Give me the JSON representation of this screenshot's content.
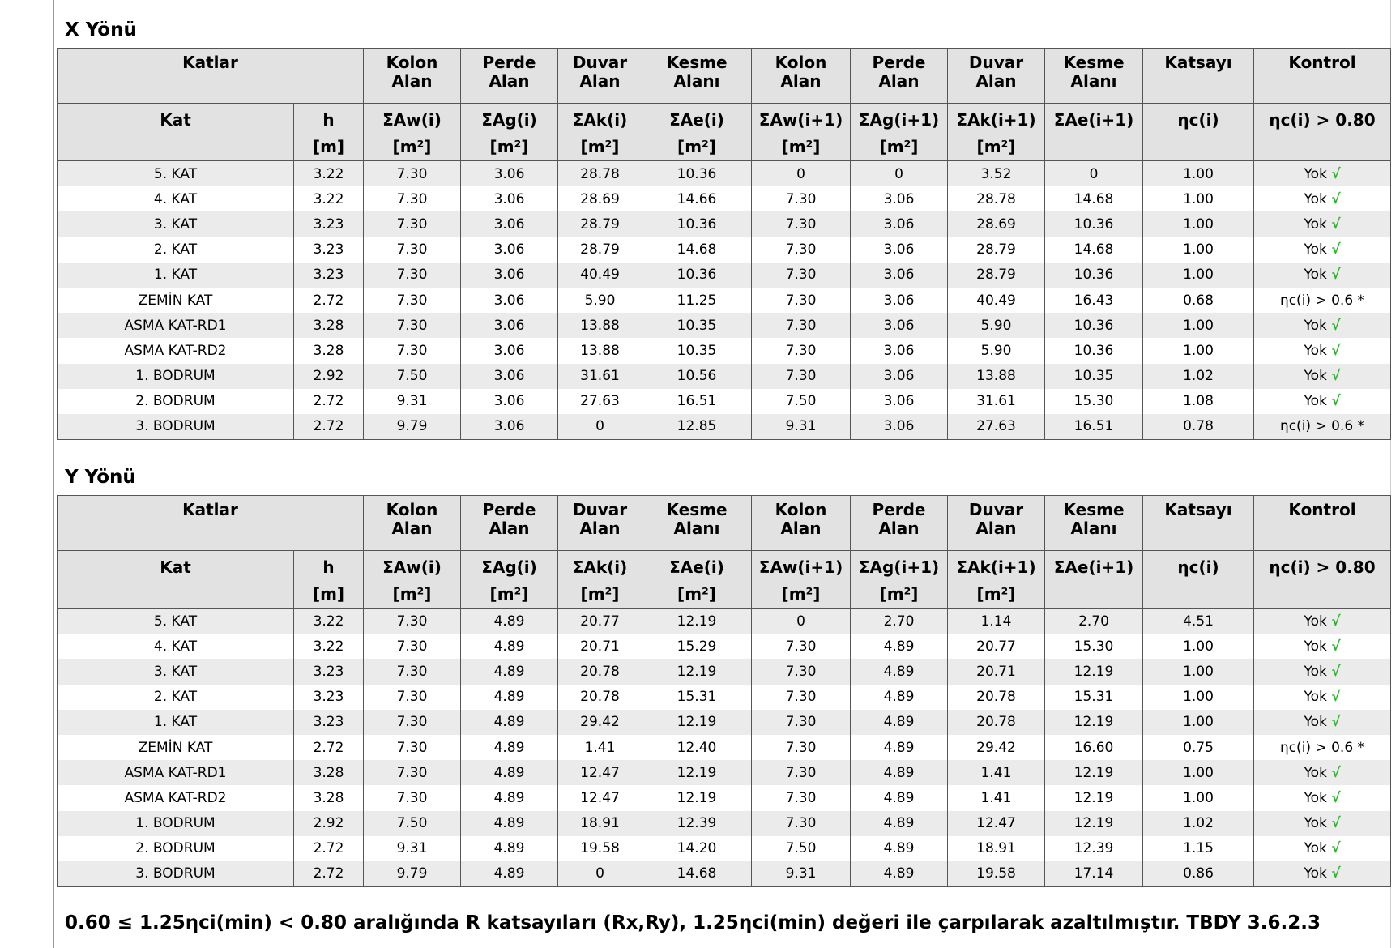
{
  "columns": {
    "group": [
      "Katlar",
      "Kolon\nAlan",
      "Perde\nAlan",
      "Duvar\nAlan",
      "Kesme\nAlanı",
      "Kolon\nAlan",
      "Perde\nAlan",
      "Duvar\nAlan",
      "Kesme\nAlanı",
      "Katsayı",
      "Kontrol"
    ],
    "symbols": [
      "Kat",
      "h\n[m]",
      "ΣAw(i)\n[m²]",
      "ΣAg(i)\n[m²]",
      "ΣAk(i)\n[m²]",
      "ΣAe(i)\n[m²]",
      "ΣAw(i+1)\n[m²]",
      "ΣAg(i+1)\n[m²]",
      "ΣAk(i+1)\n[m²]",
      "ΣAe(i+1)",
      "ηc(i)",
      "ηc(i) > 0.80"
    ]
  },
  "x_section": {
    "title": "X Yönü",
    "rows": [
      [
        "5. KAT",
        "3.22",
        "7.30",
        "3.06",
        "28.78",
        "10.36",
        "0",
        "0",
        "3.52",
        "0",
        "1.00",
        "Yok",
        "√"
      ],
      [
        "4. KAT",
        "3.22",
        "7.30",
        "3.06",
        "28.69",
        "14.66",
        "7.30",
        "3.06",
        "28.78",
        "14.68",
        "1.00",
        "Yok",
        "√"
      ],
      [
        "3. KAT",
        "3.23",
        "7.30",
        "3.06",
        "28.79",
        "10.36",
        "7.30",
        "3.06",
        "28.69",
        "10.36",
        "1.00",
        "Yok",
        "√"
      ],
      [
        "2. KAT",
        "3.23",
        "7.30",
        "3.06",
        "28.79",
        "14.68",
        "7.30",
        "3.06",
        "28.79",
        "14.68",
        "1.00",
        "Yok",
        "√"
      ],
      [
        "1. KAT",
        "3.23",
        "7.30",
        "3.06",
        "40.49",
        "10.36",
        "7.30",
        "3.06",
        "28.79",
        "10.36",
        "1.00",
        "Yok",
        "√"
      ],
      [
        "ZEMİN KAT",
        "2.72",
        "7.30",
        "3.06",
        "5.90",
        "11.25",
        "7.30",
        "3.06",
        "40.49",
        "16.43",
        "0.68",
        "ηc(i) > 0.6 *",
        ""
      ],
      [
        "ASMA KAT-RD1",
        "3.28",
        "7.30",
        "3.06",
        "13.88",
        "10.35",
        "7.30",
        "3.06",
        "5.90",
        "10.36",
        "1.00",
        "Yok",
        "√"
      ],
      [
        "ASMA KAT-RD2",
        "3.28",
        "7.30",
        "3.06",
        "13.88",
        "10.35",
        "7.30",
        "3.06",
        "5.90",
        "10.36",
        "1.00",
        "Yok",
        "√"
      ],
      [
        "1. BODRUM",
        "2.92",
        "7.50",
        "3.06",
        "31.61",
        "10.56",
        "7.30",
        "3.06",
        "13.88",
        "10.35",
        "1.02",
        "Yok",
        "√"
      ],
      [
        "2. BODRUM",
        "2.72",
        "9.31",
        "3.06",
        "27.63",
        "16.51",
        "7.50",
        "3.06",
        "31.61",
        "15.30",
        "1.08",
        "Yok",
        "√"
      ],
      [
        "3. BODRUM",
        "2.72",
        "9.79",
        "3.06",
        "0",
        "12.85",
        "9.31",
        "3.06",
        "27.63",
        "16.51",
        "0.78",
        "ηc(i) > 0.6 *",
        ""
      ]
    ]
  },
  "y_section": {
    "title": "Y Yönü",
    "rows": [
      [
        "5. KAT",
        "3.22",
        "7.30",
        "4.89",
        "20.77",
        "12.19",
        "0",
        "2.70",
        "1.14",
        "2.70",
        "4.51",
        "Yok",
        "√"
      ],
      [
        "4. KAT",
        "3.22",
        "7.30",
        "4.89",
        "20.71",
        "15.29",
        "7.30",
        "4.89",
        "20.77",
        "15.30",
        "1.00",
        "Yok",
        "√"
      ],
      [
        "3. KAT",
        "3.23",
        "7.30",
        "4.89",
        "20.78",
        "12.19",
        "7.30",
        "4.89",
        "20.71",
        "12.19",
        "1.00",
        "Yok",
        "√"
      ],
      [
        "2. KAT",
        "3.23",
        "7.30",
        "4.89",
        "20.78",
        "15.31",
        "7.30",
        "4.89",
        "20.78",
        "15.31",
        "1.00",
        "Yok",
        "√"
      ],
      [
        "1. KAT",
        "3.23",
        "7.30",
        "4.89",
        "29.42",
        "12.19",
        "7.30",
        "4.89",
        "20.78",
        "12.19",
        "1.00",
        "Yok",
        "√"
      ],
      [
        "ZEMİN KAT",
        "2.72",
        "7.30",
        "4.89",
        "1.41",
        "12.40",
        "7.30",
        "4.89",
        "29.42",
        "16.60",
        "0.75",
        "ηc(i) > 0.6 *",
        ""
      ],
      [
        "ASMA KAT-RD1",
        "3.28",
        "7.30",
        "4.89",
        "12.47",
        "12.19",
        "7.30",
        "4.89",
        "1.41",
        "12.19",
        "1.00",
        "Yok",
        "√"
      ],
      [
        "ASMA KAT-RD2",
        "3.28",
        "7.30",
        "4.89",
        "12.47",
        "12.19",
        "7.30",
        "4.89",
        "1.41",
        "12.19",
        "1.00",
        "Yok",
        "√"
      ],
      [
        "1. BODRUM",
        "2.92",
        "7.50",
        "4.89",
        "18.91",
        "12.39",
        "7.30",
        "4.89",
        "12.47",
        "12.19",
        "1.02",
        "Yok",
        "√"
      ],
      [
        "2. BODRUM",
        "2.72",
        "9.31",
        "4.89",
        "19.58",
        "14.20",
        "7.50",
        "4.89",
        "18.91",
        "12.39",
        "1.15",
        "Yok",
        "√"
      ],
      [
        "3. BODRUM",
        "2.72",
        "9.79",
        "4.89",
        "0",
        "14.68",
        "9.31",
        "4.89",
        "19.58",
        "17.14",
        "0.86",
        "Yok",
        "√"
      ]
    ]
  },
  "footnote": "0.60 ≤ 1.25ηci(min) < 0.80 aralığında R katsayıları (Rx,Ry), 1.25ηci(min) değeri ile çarpılarak azaltılmıştır. TBDY 3.6.2.3",
  "colors": {
    "header_bg": "#e2e2e2",
    "stripe": "#ebebeb",
    "check": "#2bb52b",
    "border": "#555555"
  }
}
